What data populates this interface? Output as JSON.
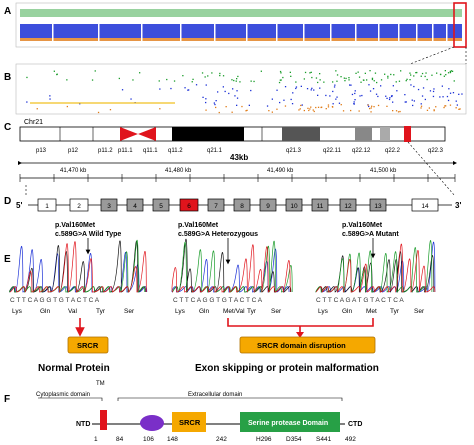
{
  "panels": {
    "a": "A",
    "b": "B",
    "c": "C",
    "d": "D",
    "e": "E",
    "f": "F"
  },
  "colors": {
    "homozyg_green": "#1a9c2a",
    "het_blue": "#1a2fd6",
    "ref_orange": "#e07b16",
    "highlight_red": "#e0141c",
    "snp_yellow": "#f0c020",
    "srcr_orange": "#f5a800",
    "serine_green": "#27a046",
    "domain_purple": "#7a2fc8"
  },
  "panel_c": {
    "chromosome": "Chr21",
    "bands": [
      "p13",
      "p12",
      "p11.2",
      "p11.1",
      "q11.1",
      "q11.2",
      "q21.1",
      "q21.3",
      "q22.11",
      "q22.12",
      "q22.2",
      "q22.3"
    ],
    "span": "43kb",
    "positions": [
      "41,470 kb",
      "41,480 kb",
      "41,490 kb",
      "41,500 kb"
    ]
  },
  "panel_d": {
    "five_prime": "5'",
    "three_prime": "3'",
    "exons": [
      "1",
      "2",
      "3",
      "4",
      "5",
      "6",
      "7",
      "8",
      "9",
      "10",
      "11",
      "12",
      "13",
      "14"
    ]
  },
  "panel_e": {
    "variant_label": "p.Val160Met",
    "genotypes": [
      "c.589G>A Wild Type",
      "c.589G>A Heterozygous",
      "c.589G>A Mutant"
    ],
    "sequences": [
      "C T T C A G G T G T A C T C A",
      "C T T C A G G T G T A C T C A",
      "C T T C A G A T G T A C T C A"
    ],
    "codons_wt": [
      "Lys",
      "Gln",
      "Val",
      "Tyr",
      "Ser"
    ],
    "codons_het": [
      "Lys",
      "Gln",
      "Met/Val",
      "Tyr",
      "Ser"
    ],
    "codons_mut": [
      "Lys",
      "Gln",
      "Met",
      "Tyr",
      "Ser"
    ],
    "box_left": "SRCR",
    "box_right": "SRCR domain disruption",
    "caption_left": "Normal Protein",
    "caption_right": "Exon skipping or protein malformation"
  },
  "panel_f": {
    "tm": "TM",
    "cyto": "Cytoplasmic domain",
    "extra": "Extracellular domain",
    "ntd": "NTD",
    "ctd": "CTD",
    "srcr": "SRCR",
    "serine": "Serine protease Domain",
    "positions": [
      "1",
      "84",
      "106",
      "148",
      "242",
      "492"
    ],
    "residues": [
      "H296",
      "D354",
      "S441"
    ]
  }
}
